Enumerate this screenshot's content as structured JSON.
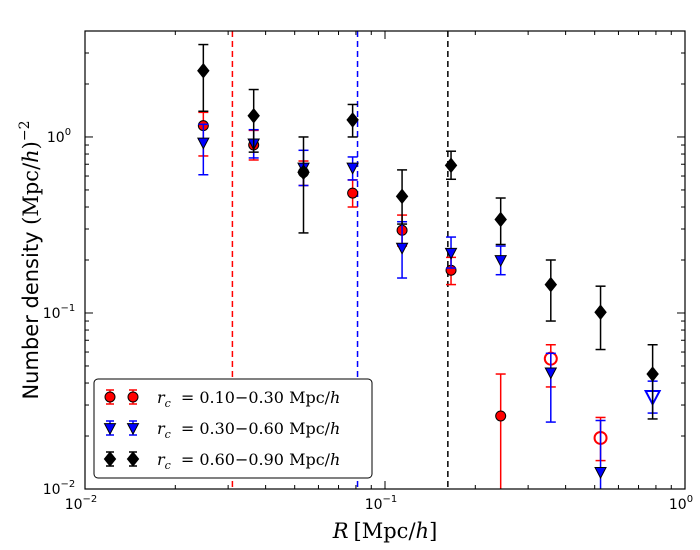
{
  "chart_data": {
    "type": "scatter",
    "title": "",
    "xlabel": "R [Mpc/h]",
    "ylabel": "Number density (Mpc/h)^-2",
    "xscale": "log",
    "yscale": "log",
    "xlim": [
      0.01,
      1.0
    ],
    "ylim": [
      0.01,
      4.0
    ],
    "x_ticks": [
      {
        "value": 0.01,
        "base": "10",
        "exp": "-2"
      },
      {
        "value": 0.1,
        "base": "10",
        "exp": "-1"
      },
      {
        "value": 1.0,
        "base": "10",
        "exp": "0"
      }
    ],
    "y_ticks": [
      {
        "value": 0.01,
        "base": "10",
        "exp": "-2"
      },
      {
        "value": 0.1,
        "base": "10",
        "exp": "-1"
      },
      {
        "value": 1.0,
        "base": "10",
        "exp": "0"
      }
    ],
    "legend_position": "lower-left",
    "vlines": [
      {
        "x": 0.031,
        "color": "#ff0000"
      },
      {
        "x": 0.081,
        "color": "#0000ff"
      },
      {
        "x": 0.162,
        "color": "#000000"
      }
    ],
    "series": [
      {
        "name": "r_c = 0.10-0.30 Mpc/h",
        "legend_sym": "r",
        "legend_sub": "c",
        "legend_range": "= 0.10−0.30 Mpc/",
        "legend_h": "h",
        "color": "#ff0000",
        "edge": "#000000",
        "marker": "circle",
        "points": [
          {
            "x": 0.0248,
            "y": 1.16,
            "lo": 0.78,
            "hi": 1.38
          },
          {
            "x": 0.0365,
            "y": 0.9,
            "lo": 0.74,
            "hi": 1.09
          },
          {
            "x": 0.0535,
            "y": 0.63,
            "lo": 0.53,
            "hi": 0.73
          },
          {
            "x": 0.078,
            "y": 0.48,
            "lo": 0.4,
            "hi": 0.57
          },
          {
            "x": 0.114,
            "y": 0.295,
            "lo": 0.24,
            "hi": 0.36
          },
          {
            "x": 0.166,
            "y": 0.175,
            "lo": 0.145,
            "hi": 0.207
          },
          {
            "x": 0.243,
            "y": 0.026,
            "lo": 0.01,
            "hi": 0.045
          }
        ],
        "open_points": [
          {
            "x": 0.357,
            "y": 0.055,
            "lo": 0.038,
            "hi": 0.066
          },
          {
            "x": 0.523,
            "y": 0.0195,
            "lo": 0.0145,
            "hi": 0.0255
          }
        ]
      },
      {
        "name": "r_c = 0.30-0.60 Mpc/h",
        "legend_sym": "r",
        "legend_sub": "c",
        "legend_range": "= 0.30−0.60 Mpc/",
        "legend_h": "h",
        "color": "#0000ff",
        "edge": "#000000",
        "marker": "triangle-down",
        "points": [
          {
            "x": 0.0248,
            "y": 0.93,
            "lo": 0.61,
            "hi": 1.18
          },
          {
            "x": 0.0365,
            "y": 0.92,
            "lo": 0.76,
            "hi": 1.1
          },
          {
            "x": 0.0535,
            "y": 0.67,
            "lo": 0.53,
            "hi": 0.84
          },
          {
            "x": 0.078,
            "y": 0.67,
            "lo": 0.57,
            "hi": 0.77
          },
          {
            "x": 0.114,
            "y": 0.235,
            "lo": 0.158,
            "hi": 0.33
          },
          {
            "x": 0.166,
            "y": 0.22,
            "lo": 0.18,
            "hi": 0.27
          },
          {
            "x": 0.243,
            "y": 0.2,
            "lo": 0.165,
            "hi": 0.24
          },
          {
            "x": 0.357,
            "y": 0.046,
            "lo": 0.024,
            "hi": 0.059
          },
          {
            "x": 0.523,
            "y": 0.0125,
            "lo": 0.01,
            "hi": 0.0245
          }
        ],
        "open_points": [
          {
            "x": 0.78,
            "y": 0.0335,
            "lo": 0.027,
            "hi": 0.041
          }
        ]
      },
      {
        "name": "r_c = 0.60-0.90 Mpc/h",
        "legend_sym": "r",
        "legend_sub": "c",
        "legend_range": "= 0.60−0.90 Mpc/",
        "legend_h": "h",
        "color": "#000000",
        "edge": "#000000",
        "marker": "diamond",
        "points": [
          {
            "x": 0.0248,
            "y": 2.38,
            "lo": 1.4,
            "hi": 3.35
          },
          {
            "x": 0.0365,
            "y": 1.32,
            "lo": 0.82,
            "hi": 1.86
          },
          {
            "x": 0.0535,
            "y": 0.63,
            "lo": 0.285,
            "hi": 1.0
          },
          {
            "x": 0.078,
            "y": 1.25,
            "lo": 1.0,
            "hi": 1.53
          },
          {
            "x": 0.114,
            "y": 0.46,
            "lo": 0.32,
            "hi": 0.65
          },
          {
            "x": 0.166,
            "y": 0.69,
            "lo": 0.575,
            "hi": 0.83
          },
          {
            "x": 0.243,
            "y": 0.34,
            "lo": 0.245,
            "hi": 0.45
          },
          {
            "x": 0.357,
            "y": 0.145,
            "lo": 0.09,
            "hi": 0.2
          },
          {
            "x": 0.523,
            "y": 0.101,
            "lo": 0.062,
            "hi": 0.142
          },
          {
            "x": 0.78,
            "y": 0.045,
            "lo": 0.025,
            "hi": 0.066
          }
        ],
        "open_points": []
      }
    ]
  }
}
